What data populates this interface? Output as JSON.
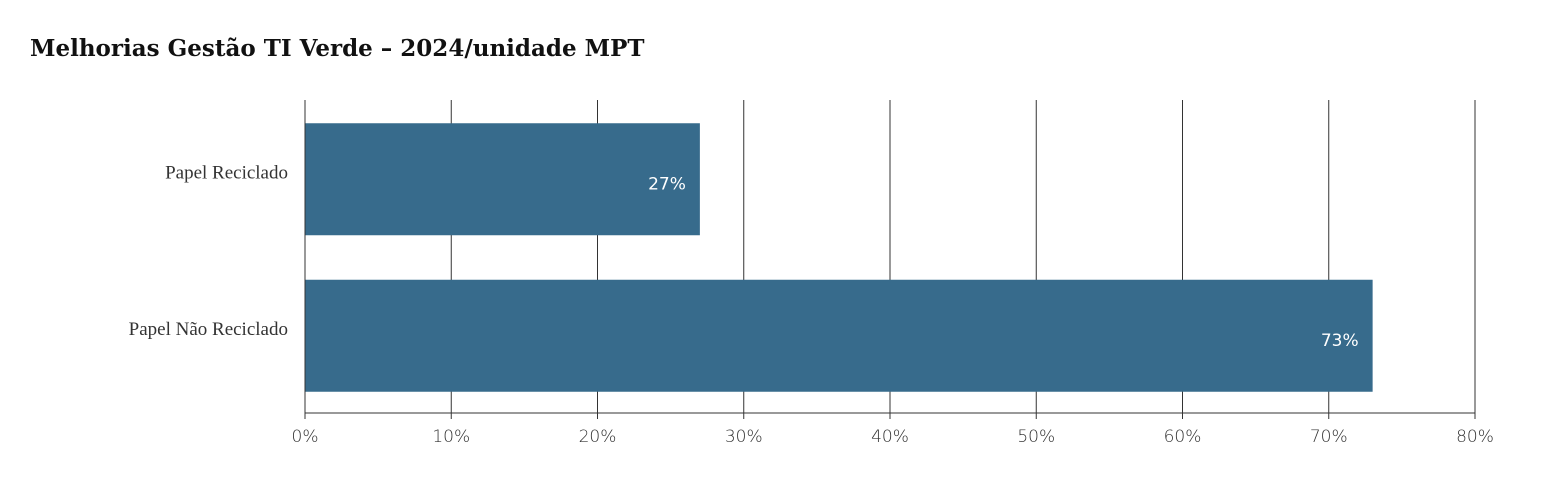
{
  "chart_data": {
    "type": "hbar",
    "title": "Melhorias Gestão TI Verde – 2024/unidade MPT",
    "categories": [
      "Papel Reciclado",
      "Papel Não Reciclado"
    ],
    "values": [
      27,
      73
    ],
    "value_labels": [
      "27%",
      "73%"
    ],
    "color": "#376b8c",
    "xlim": [
      0,
      80
    ],
    "xticks": [
      {
        "value": 0,
        "label": "0%"
      },
      {
        "value": 10,
        "label": "10%"
      },
      {
        "value": 20,
        "label": "20%"
      },
      {
        "value": 30,
        "label": "30%"
      },
      {
        "value": 40,
        "label": "40%"
      },
      {
        "value": 50,
        "label": "50%"
      },
      {
        "value": 60,
        "label": "60%"
      },
      {
        "value": 70,
        "label": "70%"
      },
      {
        "value": 80,
        "label": "80%"
      }
    ],
    "grid": true
  }
}
